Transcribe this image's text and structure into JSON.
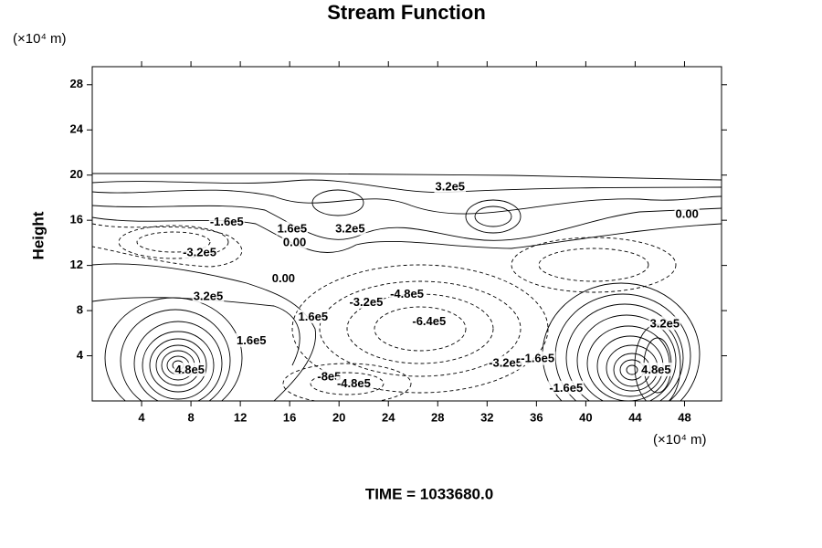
{
  "chart_data": {
    "type": "contour",
    "title": "Stream Function",
    "ylabel": "Height",
    "yunit": "(×10⁴ m)",
    "xunit": "(×10⁴ m)",
    "xlim": [
      0,
      51
    ],
    "ylim": [
      0,
      29.6
    ],
    "xticks": [
      4,
      8,
      12,
      16,
      20,
      24,
      28,
      32,
      36,
      40,
      44,
      48
    ],
    "yticks": [
      4,
      8,
      12,
      16,
      20,
      24,
      28
    ],
    "contour_labels": [
      {
        "text": "3.2e5",
        "x": 29.0,
        "y": 18.9
      },
      {
        "text": "-1.6e5",
        "x": 10.9,
        "y": 15.8
      },
      {
        "text": "1.6e5",
        "x": 16.2,
        "y": 15.2
      },
      {
        "text": "0.00",
        "x": 16.4,
        "y": 14.0
      },
      {
        "text": "3.2e5",
        "x": 20.9,
        "y": 15.2
      },
      {
        "text": "0.00",
        "x": 48.2,
        "y": 16.5
      },
      {
        "text": "-3.2e5",
        "x": 8.7,
        "y": 13.1
      },
      {
        "text": "0.00",
        "x": 15.5,
        "y": 10.8
      },
      {
        "text": "3.2e5",
        "x": 9.4,
        "y": 9.2
      },
      {
        "text": "-3.2e5",
        "x": 22.2,
        "y": 8.7
      },
      {
        "text": "-4.8e5",
        "x": 25.5,
        "y": 9.4
      },
      {
        "text": "1.6e5",
        "x": 17.9,
        "y": 7.4
      },
      {
        "text": "-6.4e5",
        "x": 27.3,
        "y": 7.0
      },
      {
        "text": "1.6e5",
        "x": 12.9,
        "y": 5.3
      },
      {
        "text": "-3.2e5",
        "x": 33.5,
        "y": 3.3
      },
      {
        "text": "-1.6e5",
        "x": 36.1,
        "y": 3.7
      },
      {
        "text": "-8e5",
        "x": 19.2,
        "y": 2.1
      },
      {
        "text": "-4.8e5",
        "x": 21.2,
        "y": 1.5
      },
      {
        "text": "4.8e5",
        "x": 7.9,
        "y": 2.7
      },
      {
        "text": "-1.6e5",
        "x": 38.4,
        "y": 1.1
      },
      {
        "text": "3.2e5",
        "x": 46.4,
        "y": 6.8
      },
      {
        "text": "4.8e5",
        "x": 45.7,
        "y": 2.7
      }
    ],
    "footer": "TIME = 1033680.0"
  }
}
